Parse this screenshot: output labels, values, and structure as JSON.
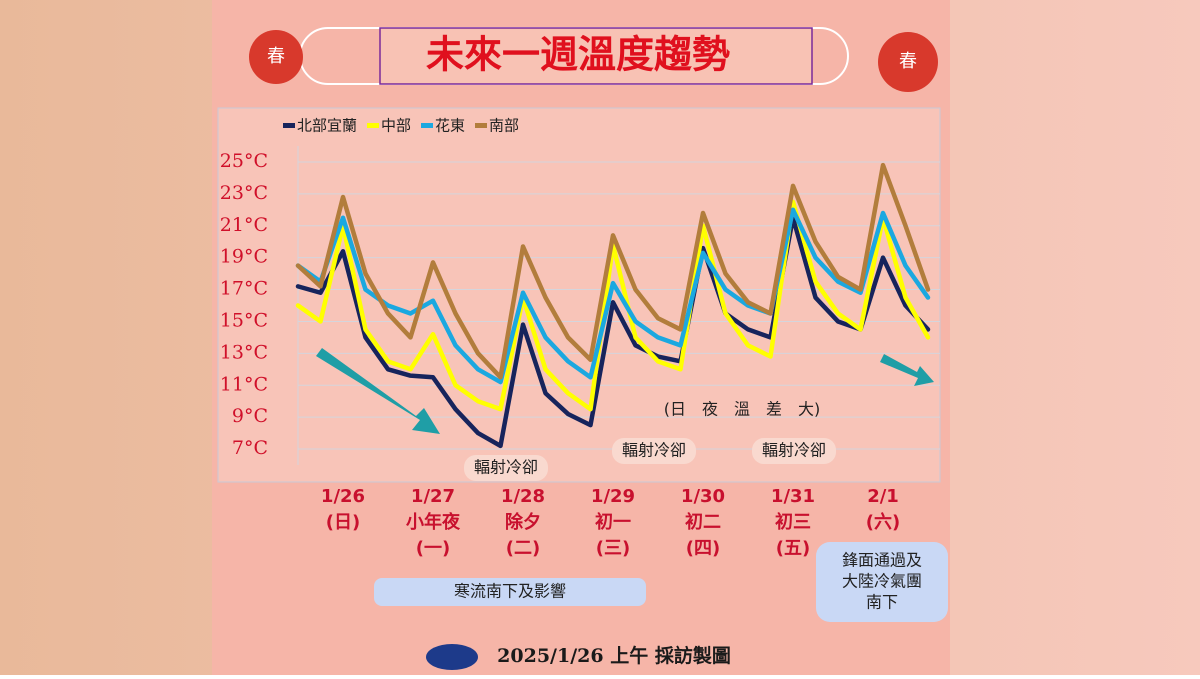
{
  "chart_data": {
    "type": "line",
    "title": "未來一週溫度趨勢",
    "series": [
      {
        "name": "北部宜蘭",
        "color": "#17245c",
        "values": [
          17.2,
          16.8,
          19.4,
          14.0,
          12.0,
          11.6,
          11.5,
          9.5,
          8.0,
          7.2,
          14.8,
          10.5,
          9.2,
          8.5,
          16.2,
          13.5,
          12.8,
          12.5,
          19.6,
          15.5,
          14.5,
          14.0,
          21.5,
          16.5,
          15.0,
          14.5,
          19.0,
          16.0,
          14.5
        ]
      },
      {
        "name": "中部",
        "color": "#ffff00",
        "values": [
          16.0,
          15.0,
          21.0,
          14.5,
          12.5,
          12.0,
          14.2,
          11.0,
          10.0,
          9.5,
          16.5,
          12.0,
          10.5,
          9.5,
          19.8,
          14.0,
          12.5,
          12.0,
          21.0,
          15.5,
          13.5,
          12.8,
          22.5,
          17.5,
          15.5,
          14.5,
          21.5,
          16.5,
          14.0
        ]
      },
      {
        "name": "花東",
        "color": "#1ba8e0",
        "values": [
          18.5,
          17.5,
          21.5,
          17.0,
          16.0,
          15.5,
          16.3,
          13.5,
          12.0,
          11.2,
          16.8,
          14.0,
          12.5,
          11.5,
          17.4,
          15.0,
          14.0,
          13.5,
          19.3,
          17.0,
          16.0,
          15.5,
          22.0,
          19.0,
          17.5,
          16.8,
          21.8,
          18.5,
          16.5
        ]
      },
      {
        "name": "南部",
        "color": "#b27d3c",
        "values": [
          18.5,
          17.2,
          22.8,
          18.0,
          15.5,
          14.0,
          18.7,
          15.5,
          13.0,
          11.5,
          19.7,
          16.5,
          14.0,
          12.6,
          20.4,
          17.0,
          15.2,
          14.5,
          21.8,
          18.0,
          16.2,
          15.5,
          23.5,
          20.0,
          17.8,
          17.0,
          24.8,
          21.0,
          17.0
        ]
      }
    ],
    "ylim": [
      6,
      26
    ],
    "yticks": [
      {
        "value": 7,
        "label": "7°C"
      },
      {
        "value": 9,
        "label": "9°C"
      },
      {
        "value": 11,
        "label": "11°C"
      },
      {
        "value": 13,
        "label": "13°C"
      },
      {
        "value": 15,
        "label": "15°C"
      },
      {
        "value": 17,
        "label": "17°C"
      },
      {
        "value": 19,
        "label": "19°C"
      },
      {
        "value": 21,
        "label": "21°C"
      },
      {
        "value": 23,
        "label": "23°C"
      },
      {
        "value": 25,
        "label": "25°C"
      }
    ],
    "grid": true,
    "day_labels": [
      [
        "1/26",
        "(日)"
      ],
      [
        "1/27",
        "小年夜",
        "(一)"
      ],
      [
        "1/28",
        "除夕",
        "(二)"
      ],
      [
        "1/29",
        "初一",
        "(三)"
      ],
      [
        "1/30",
        "初二",
        "(四)"
      ],
      [
        "1/31",
        "初三",
        "(五)"
      ],
      [
        "2/1",
        "(六)"
      ]
    ],
    "annotations": {
      "diurnal": "(日　夜　溫　差　大)",
      "radiative": [
        "輻射冷卻",
        "輻射冷卻",
        "輻射冷卻"
      ],
      "cold_surge": "寒流南下及影響",
      "front": [
        "鋒面通過及",
        "大陸冷氣團",
        "南下"
      ]
    },
    "footer": "2025/1/26 上午 採訪製圖",
    "lanterns": [
      "春",
      "春"
    ]
  }
}
